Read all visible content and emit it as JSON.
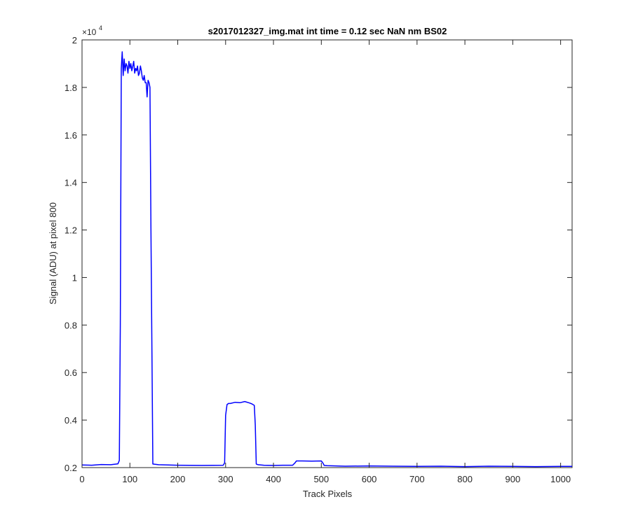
{
  "chart_data": {
    "type": "line",
    "title": "s2017012327_img.mat int time = 0.12 sec  NaN nm BS02",
    "xlabel": "Track Pixels",
    "ylabel": "Signal (ADU) at pixel 800",
    "xlim": [
      0,
      1024
    ],
    "ylim": [
      2000,
      20000
    ],
    "y_exponent_label": "×10",
    "y_exponent_power": "4",
    "x_ticks": [
      0,
      100,
      200,
      300,
      400,
      500,
      600,
      700,
      800,
      900,
      1000
    ],
    "x_tick_labels": [
      "0",
      "100",
      "200",
      "300",
      "400",
      "500",
      "600",
      "700",
      "800",
      "900",
      "1000"
    ],
    "y_ticks": [
      2000,
      4000,
      6000,
      8000,
      10000,
      12000,
      14000,
      16000,
      18000,
      20000
    ],
    "y_tick_labels": [
      "0.2",
      "0.4",
      "0.6",
      "0.8",
      "1",
      "1.2",
      "1.4",
      "1.6",
      "1.8",
      "2"
    ],
    "grid": false,
    "line_color": "#0000ff",
    "axis_color": "#262626",
    "series": [
      {
        "x": [
          0,
          20,
          40,
          60,
          75,
          78,
          80,
          82,
          84,
          86,
          88,
          90,
          92,
          94,
          96,
          98,
          100,
          102,
          104,
          106,
          108,
          110,
          112,
          114,
          116,
          118,
          120,
          122,
          124,
          126,
          128,
          130,
          132,
          134,
          136,
          138,
          140,
          142,
          144,
          148,
          160,
          200,
          250,
          295,
          298,
          300,
          303,
          306,
          310,
          320,
          330,
          340,
          350,
          355,
          360,
          362,
          364,
          368,
          380,
          400,
          420,
          440,
          445,
          448,
          460,
          480,
          500,
          503,
          506,
          512,
          550,
          600,
          650,
          700,
          750,
          800,
          850,
          900,
          950,
          1000,
          1024
        ],
        "y": [
          2110,
          2100,
          2130,
          2120,
          2160,
          2300,
          8000,
          18800,
          19500,
          18500,
          19200,
          18700,
          19000,
          18900,
          18600,
          19100,
          18800,
          19000,
          18700,
          18900,
          19100,
          18600,
          18800,
          18700,
          18900,
          18500,
          18600,
          18900,
          18700,
          18400,
          18300,
          18500,
          18200,
          18200,
          17600,
          18300,
          18200,
          18000,
          12000,
          2150,
          2120,
          2100,
          2090,
          2100,
          2200,
          4200,
          4650,
          4700,
          4700,
          4750,
          4730,
          4780,
          4720,
          4680,
          4620,
          3800,
          2150,
          2120,
          2100,
          2090,
          2100,
          2100,
          2200,
          2280,
          2280,
          2270,
          2280,
          2200,
          2090,
          2080,
          2060,
          2070,
          2060,
          2050,
          2060,
          2040,
          2060,
          2050,
          2040,
          2050,
          2050
        ]
      }
    ]
  }
}
